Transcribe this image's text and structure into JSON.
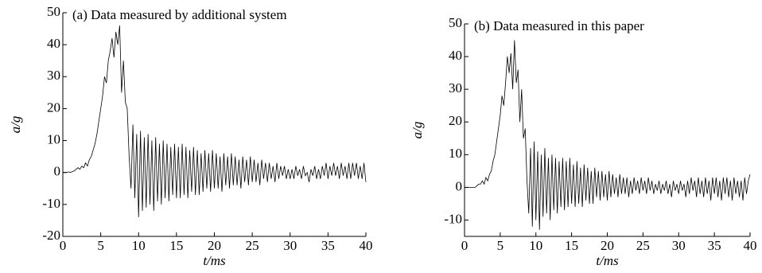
{
  "chart_data": [
    {
      "type": "line",
      "title": "(a) Data measured by additional system",
      "xlabel": "t/ms",
      "ylabel": "a/g",
      "xlim": [
        0,
        40
      ],
      "xticks": [
        0,
        5,
        10,
        15,
        20,
        25,
        30,
        35,
        40
      ],
      "ylim": [
        -20,
        50
      ],
      "yticks": [
        -20,
        -10,
        0,
        10,
        20,
        30,
        40,
        50
      ],
      "series": [
        {
          "color": "#000000",
          "x": [
            0,
            0.25,
            0.5,
            0.75,
            1,
            1.25,
            1.5,
            1.75,
            2,
            2.25,
            2.5,
            2.75,
            3,
            3.25,
            3.5,
            3.75,
            4,
            4.25,
            4.5,
            4.75,
            5,
            5.25,
            5.5,
            5.75,
            6,
            6.25,
            6.5,
            6.75,
            7,
            7.25,
            7.5,
            7.75,
            8,
            8.25,
            8.5,
            8.75,
            9,
            9.25,
            9.5,
            9.75,
            10,
            10.25,
            10.5,
            10.75,
            11,
            11.25,
            11.5,
            11.75,
            12,
            12.25,
            12.5,
            12.75,
            13,
            13.25,
            13.5,
            13.75,
            14,
            14.25,
            14.5,
            14.75,
            15,
            15.25,
            15.5,
            15.75,
            16,
            16.25,
            16.5,
            16.75,
            17,
            17.25,
            17.5,
            17.75,
            18,
            18.25,
            18.5,
            18.75,
            19,
            19.25,
            19.5,
            19.75,
            20,
            20.25,
            20.5,
            20.75,
            21,
            21.25,
            21.5,
            21.75,
            22,
            22.25,
            22.5,
            22.75,
            23,
            23.25,
            23.5,
            23.75,
            24,
            24.25,
            24.5,
            24.75,
            25,
            25.25,
            25.5,
            25.75,
            26,
            26.25,
            26.5,
            26.75,
            27,
            27.25,
            27.5,
            27.75,
            28,
            28.25,
            28.5,
            28.75,
            29,
            29.25,
            29.5,
            29.75,
            30,
            30.25,
            30.5,
            30.75,
            31,
            31.25,
            31.5,
            31.75,
            32,
            32.25,
            32.5,
            32.75,
            33,
            33.25,
            33.5,
            33.75,
            34,
            34.25,
            34.5,
            34.75,
            35,
            35.25,
            35.5,
            35.75,
            36,
            36.25,
            36.5,
            36.75,
            37,
            37.25,
            37.5,
            37.75,
            38,
            38.25,
            38.5,
            38.75,
            39,
            39.25,
            39.5,
            39.75,
            40
          ],
          "values": [
            0,
            0,
            0,
            0.2,
            0,
            0.3,
            0.5,
            1,
            1.5,
            1,
            2,
            1.5,
            3,
            2,
            4,
            5,
            7,
            9,
            12,
            16,
            20,
            24,
            30,
            28,
            35,
            38,
            42,
            36,
            44,
            40,
            46,
            25,
            35,
            22,
            20,
            5,
            -5,
            15,
            -8,
            12,
            -14,
            13,
            -12,
            11,
            -11,
            12,
            -10,
            10,
            -12,
            11,
            -9,
            9,
            -10,
            10,
            -8,
            9,
            -9,
            8,
            -7,
            9,
            -8,
            8,
            -8,
            9,
            -7,
            8,
            -8,
            7,
            -6,
            8,
            -7,
            7,
            -7,
            6,
            -6,
            7,
            -5,
            6,
            -6,
            7,
            -5,
            6,
            -5,
            5,
            -6,
            6,
            -4,
            5,
            -5,
            6,
            -4,
            5,
            -4,
            4,
            -5,
            5,
            -3,
            4,
            -4,
            5,
            -3,
            4,
            -3,
            3,
            -4,
            4,
            -2,
            3,
            -3,
            3,
            -2,
            2,
            -3,
            3,
            -2,
            2,
            -1,
            2,
            -2,
            1,
            -2,
            1,
            -2,
            2,
            -1,
            1,
            -2,
            2,
            -1,
            0,
            -3,
            1,
            -1,
            2,
            -2,
            1,
            -2,
            2,
            -1,
            3,
            -2,
            2,
            -1,
            3,
            -1,
            2,
            -2,
            3,
            -1,
            2,
            -2,
            3,
            -2,
            3,
            -1,
            3,
            -2,
            2,
            -2,
            3,
            -3
          ]
        }
      ]
    },
    {
      "type": "line",
      "title": "(b) Data measured in this paper",
      "xlabel": "t/ms",
      "ylabel": "a/g",
      "xlim": [
        0,
        40
      ],
      "xticks": [
        0,
        5,
        10,
        15,
        20,
        25,
        30,
        35,
        40
      ],
      "ylim": [
        -15,
        50
      ],
      "yticks": [
        -10,
        0,
        10,
        20,
        30,
        40,
        50
      ],
      "series": [
        {
          "color": "#000000",
          "x": [
            0,
            0.25,
            0.5,
            0.75,
            1,
            1.25,
            1.5,
            1.75,
            2,
            2.25,
            2.5,
            2.75,
            3,
            3.25,
            3.5,
            3.75,
            4,
            4.25,
            4.5,
            4.75,
            5,
            5.25,
            5.5,
            5.75,
            6,
            6.25,
            6.5,
            6.75,
            7,
            7.25,
            7.5,
            7.75,
            8,
            8.25,
            8.5,
            8.75,
            9,
            9.25,
            9.5,
            9.75,
            10,
            10.25,
            10.5,
            10.75,
            11,
            11.25,
            11.5,
            11.75,
            12,
            12.25,
            12.5,
            12.75,
            13,
            13.25,
            13.5,
            13.75,
            14,
            14.25,
            14.5,
            14.75,
            15,
            15.25,
            15.5,
            15.75,
            16,
            16.25,
            16.5,
            16.75,
            17,
            17.25,
            17.5,
            17.75,
            18,
            18.25,
            18.5,
            18.75,
            19,
            19.25,
            19.5,
            19.75,
            20,
            20.25,
            20.5,
            20.75,
            21,
            21.25,
            21.5,
            21.75,
            22,
            22.25,
            22.5,
            22.75,
            23,
            23.25,
            23.5,
            23.75,
            24,
            24.25,
            24.5,
            24.75,
            25,
            25.25,
            25.5,
            25.75,
            26,
            26.25,
            26.5,
            26.75,
            27,
            27.25,
            27.5,
            27.75,
            28,
            28.25,
            28.5,
            28.75,
            29,
            29.25,
            29.5,
            29.75,
            30,
            30.25,
            30.5,
            30.75,
            31,
            31.25,
            31.5,
            31.75,
            32,
            32.25,
            32.5,
            32.75,
            33,
            33.25,
            33.5,
            33.75,
            34,
            34.25,
            34.5,
            34.75,
            35,
            35.25,
            35.5,
            35.75,
            36,
            36.25,
            36.5,
            36.75,
            37,
            37.25,
            37.5,
            37.75,
            38,
            38.25,
            38.5,
            38.75,
            39,
            39.25,
            39.5,
            39.75,
            40
          ],
          "values": [
            0,
            0,
            0,
            0,
            0,
            0,
            0,
            0.5,
            1,
            1,
            2,
            1,
            3,
            2,
            4,
            5,
            8,
            10,
            14,
            18,
            22,
            28,
            25,
            32,
            40,
            35,
            41,
            30,
            45,
            32,
            36,
            20,
            30,
            15,
            18,
            2,
            -8,
            12,
            -12,
            14,
            -10,
            11,
            -13,
            10,
            -9,
            12,
            -8,
            9,
            -10,
            10,
            -7,
            9,
            -8,
            8,
            -6,
            9,
            -7,
            8,
            -6,
            9,
            -5,
            7,
            -6,
            8,
            -5,
            6,
            -6,
            7,
            -4,
            6,
            -5,
            5,
            -5,
            6,
            -3,
            5,
            -4,
            5,
            -3,
            4,
            -4,
            5,
            -3,
            4,
            -2,
            3,
            -3,
            4,
            -2,
            3,
            -2,
            3,
            -3,
            2,
            -2,
            3,
            -1,
            2,
            -2,
            3,
            -1,
            2,
            -2,
            3,
            -1,
            2,
            -2,
            1,
            -1,
            2,
            -2,
            1,
            -1,
            2,
            -2,
            1,
            -3,
            2,
            -1,
            1,
            -2,
            2,
            -1,
            1,
            -3,
            2,
            -2,
            3,
            -1,
            2,
            -3,
            3,
            -2,
            2,
            -3,
            3,
            -2,
            2,
            -4,
            3,
            -2,
            3,
            -3,
            2,
            -4,
            3,
            -2,
            3,
            -3,
            2,
            -4,
            3,
            -2,
            2,
            -3,
            2,
            -4,
            3,
            -2,
            2,
            4
          ]
        }
      ]
    }
  ]
}
